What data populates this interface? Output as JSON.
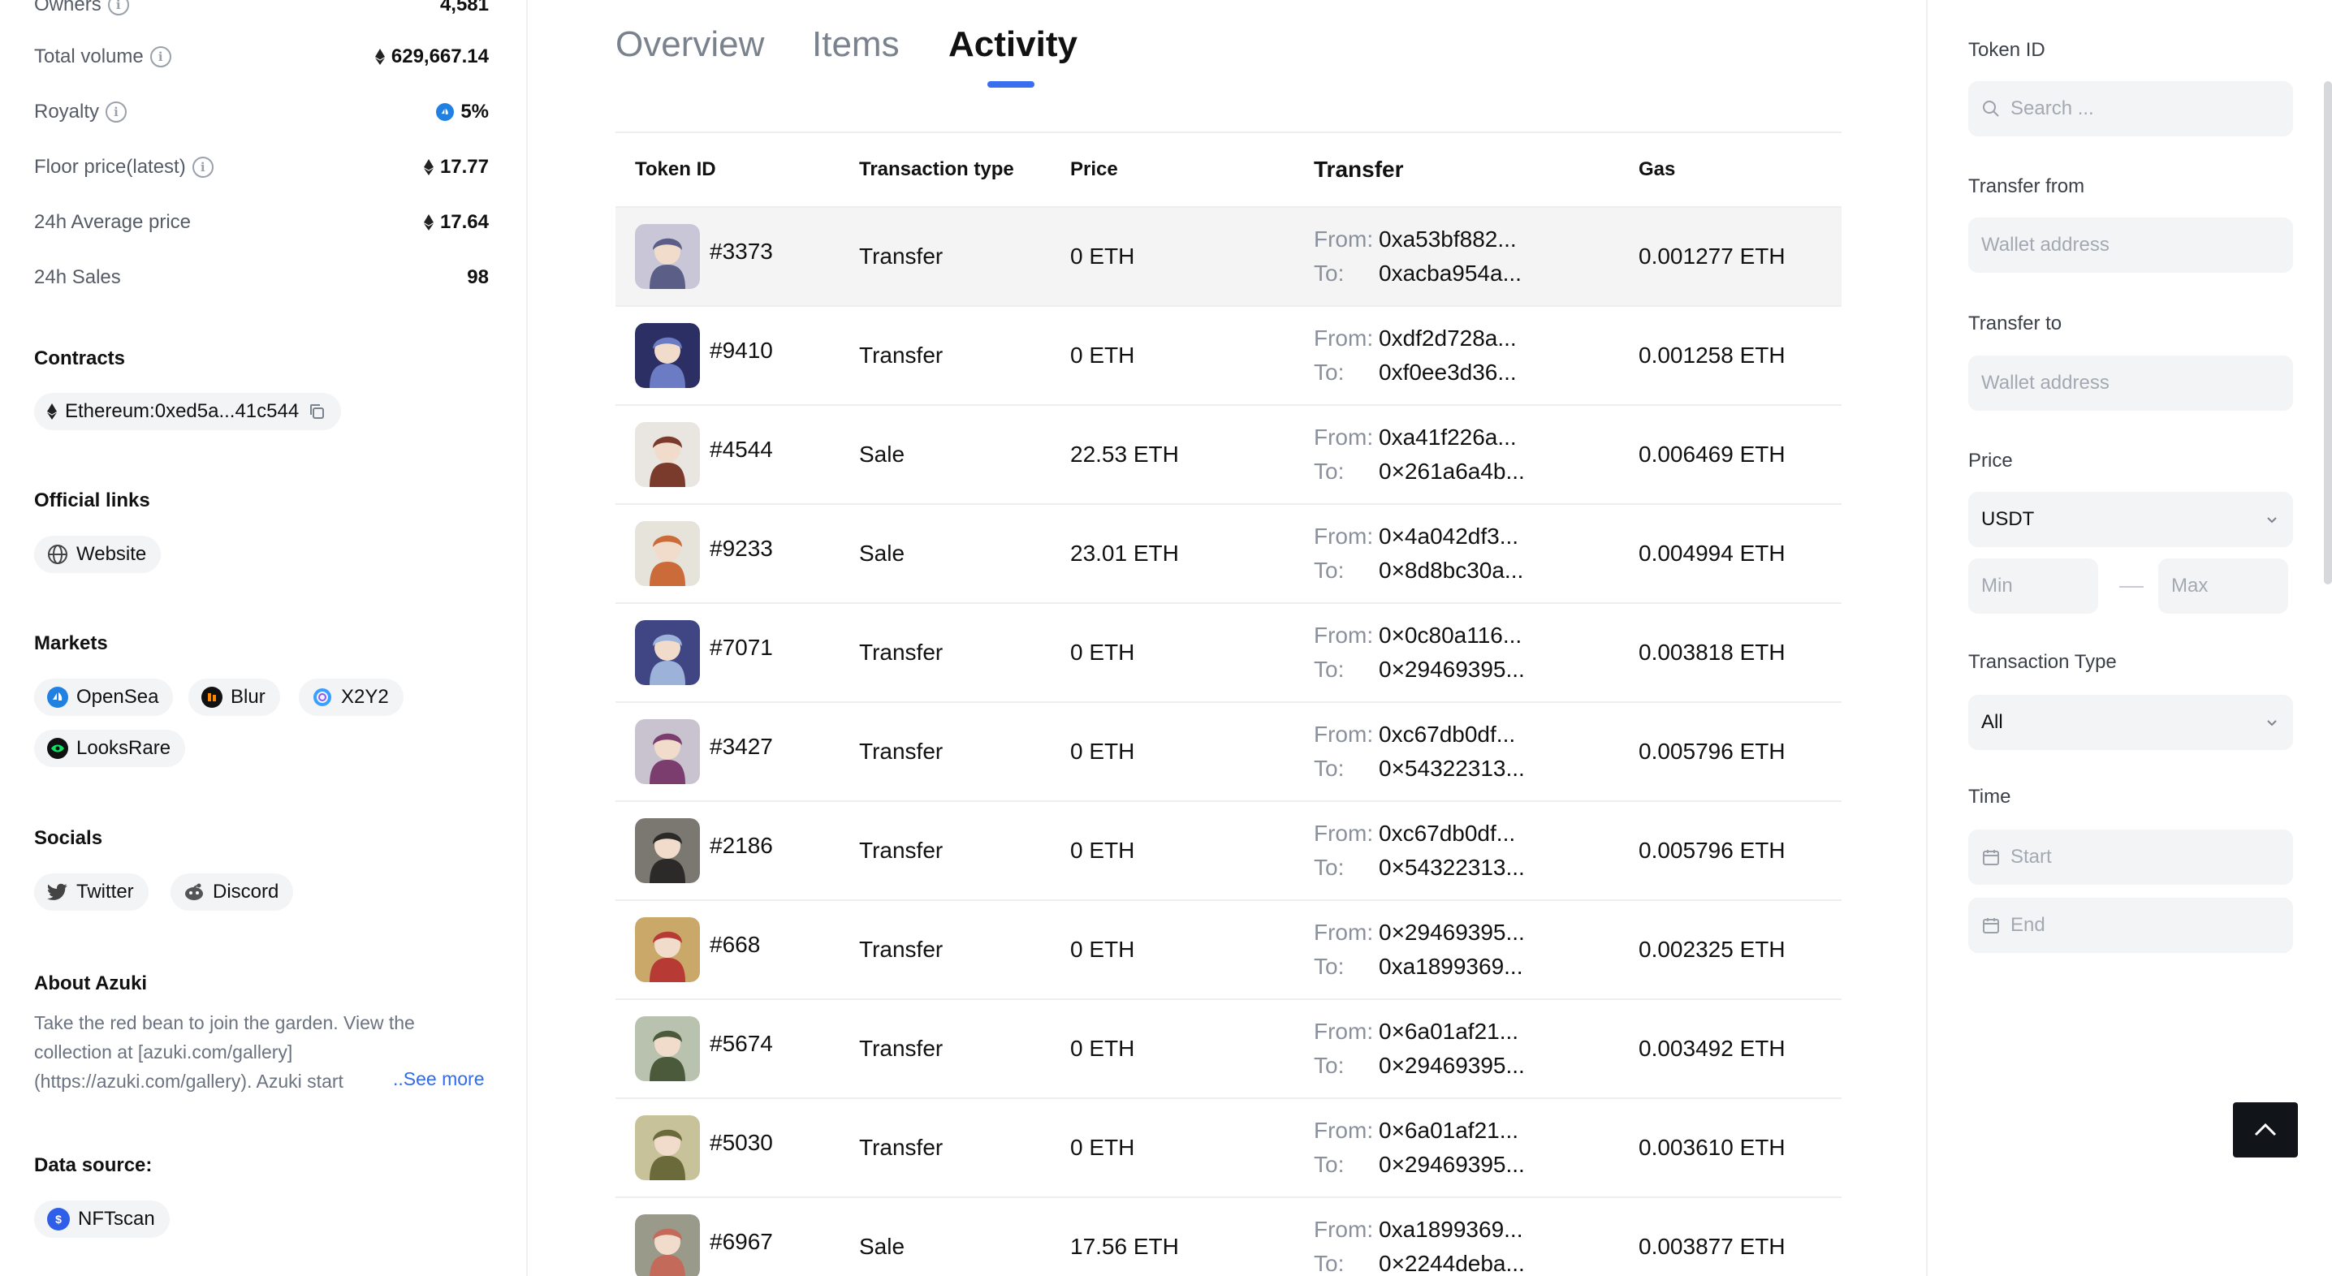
{
  "stats": [
    {
      "label": "Owners",
      "value": "4,581",
      "info": true,
      "eth": false
    },
    {
      "label": "Total volume",
      "value": "629,667.14",
      "info": true,
      "eth": true
    },
    {
      "label": "Royalty",
      "value": "5%",
      "info": true,
      "eth": false,
      "opensea": true
    },
    {
      "label": "Floor price(latest)",
      "value": "17.77",
      "info": true,
      "eth": true
    },
    {
      "label": "24h Average price",
      "value": "17.64",
      "info": false,
      "eth": true
    },
    {
      "label": "24h Sales",
      "value": "98",
      "info": false,
      "eth": false
    }
  ],
  "contracts": {
    "title": "Contracts",
    "value": "Ethereum:0xed5a...41c544"
  },
  "official_links": {
    "title": "Official links",
    "website": "Website"
  },
  "markets": {
    "title": "Markets",
    "opensea": "OpenSea",
    "blur": "Blur",
    "x2y2": "X2Y2",
    "looksrare": "LooksRare"
  },
  "socials": {
    "title": "Socials",
    "twitter": "Twitter",
    "discord": "Discord"
  },
  "about": {
    "title": "About Azuki",
    "text": "Take the red bean to join the garden. View the collection at [azuki.com/gallery](https://azuki.com/gallery). Azuki start",
    "see_more": "..See more"
  },
  "data_source": {
    "title": "Data source:",
    "value": "NFTscan"
  },
  "tabs": {
    "overview": "Overview",
    "items": "Items",
    "activity": "Activity"
  },
  "table": {
    "headers": {
      "token_id": "Token ID",
      "type": "Transaction type",
      "price": "Price",
      "transfer": "Transfer",
      "gas": "Gas"
    },
    "from_label": "From:",
    "to_label": "To:",
    "rows": [
      {
        "id": "#3373",
        "type": "Transfer",
        "price": "0 ETH",
        "from": "0xa53bf882...",
        "to": "0xacba954a...",
        "gas": "0.001277 ETH",
        "c1": "#c9c6d8",
        "c2": "#5b5e86"
      },
      {
        "id": "#9410",
        "type": "Transfer",
        "price": "0 ETH",
        "from": "0xdf2d728a...",
        "to": "0xf0ee3d36...",
        "gas": "0.001258 ETH",
        "c1": "#2b2f63",
        "c2": "#6b7bc4"
      },
      {
        "id": "#4544",
        "type": "Sale",
        "price": "22.53 ETH",
        "from": "0xa41f226a...",
        "to": "0×261a6a4b...",
        "gas": "0.006469 ETH",
        "c1": "#e9e6e2",
        "c2": "#7a3a2c"
      },
      {
        "id": "#9233",
        "type": "Sale",
        "price": "23.01 ETH",
        "from": "0×4a042df3...",
        "to": "0×8d8bc30a...",
        "gas": "0.004994 ETH",
        "c1": "#e6e3da",
        "c2": "#cc6b3a"
      },
      {
        "id": "#7071",
        "type": "Transfer",
        "price": "0 ETH",
        "from": "0×0c80a116...",
        "to": "0×29469395...",
        "gas": "0.003818 ETH",
        "c1": "#3f4683",
        "c2": "#9cb2d9"
      },
      {
        "id": "#3427",
        "type": "Transfer",
        "price": "0 ETH",
        "from": "0xc67db0df...",
        "to": "0×54322313...",
        "gas": "0.005796 ETH",
        "c1": "#c8c3cf",
        "c2": "#7a3d6e"
      },
      {
        "id": "#2186",
        "type": "Transfer",
        "price": "0 ETH",
        "from": "0xc67db0df...",
        "to": "0×54322313...",
        "gas": "0.005796 ETH",
        "c1": "#7a7870",
        "c2": "#2c2a28"
      },
      {
        "id": "#668",
        "type": "Transfer",
        "price": "0 ETH",
        "from": "0×29469395...",
        "to": "0xa1899369...",
        "gas": "0.002325 ETH",
        "c1": "#c9a86a",
        "c2": "#b83a34"
      },
      {
        "id": "#5674",
        "type": "Transfer",
        "price": "0 ETH",
        "from": "0×6a01af21...",
        "to": "0×29469395...",
        "gas": "0.003492 ETH",
        "c1": "#b9c2ae",
        "c2": "#4a5a3a"
      },
      {
        "id": "#5030",
        "type": "Transfer",
        "price": "0 ETH",
        "from": "0×6a01af21...",
        "to": "0×29469395...",
        "gas": "0.003610 ETH",
        "c1": "#c7c29a",
        "c2": "#6b6a3a"
      },
      {
        "id": "#6967",
        "type": "Sale",
        "price": "17.56 ETH",
        "from": "0xa1899369...",
        "to": "0×2244deba...",
        "gas": "0.003877 ETH",
        "c1": "#9a9a8a",
        "c2": "#c46a5a"
      }
    ]
  },
  "filters": {
    "token_id": {
      "label": "Token ID",
      "placeholder": "Search ..."
    },
    "transfer_from": {
      "label": "Transfer from",
      "placeholder": "Wallet address"
    },
    "transfer_to": {
      "label": "Transfer to",
      "placeholder": "Wallet address"
    },
    "price": {
      "label": "Price",
      "currency": "USDT",
      "min": "Min",
      "max": "Max"
    },
    "transaction_type": {
      "label": "Transaction Type",
      "value": "All"
    },
    "time": {
      "label": "Time",
      "start": "Start",
      "end": "End"
    }
  },
  "colors": {
    "accent": "#3a6ef0",
    "link": "#2f6bea",
    "opensea": "#2081e2",
    "looksrare": "#0ce466",
    "nftscan": "#2f5fe8"
  }
}
